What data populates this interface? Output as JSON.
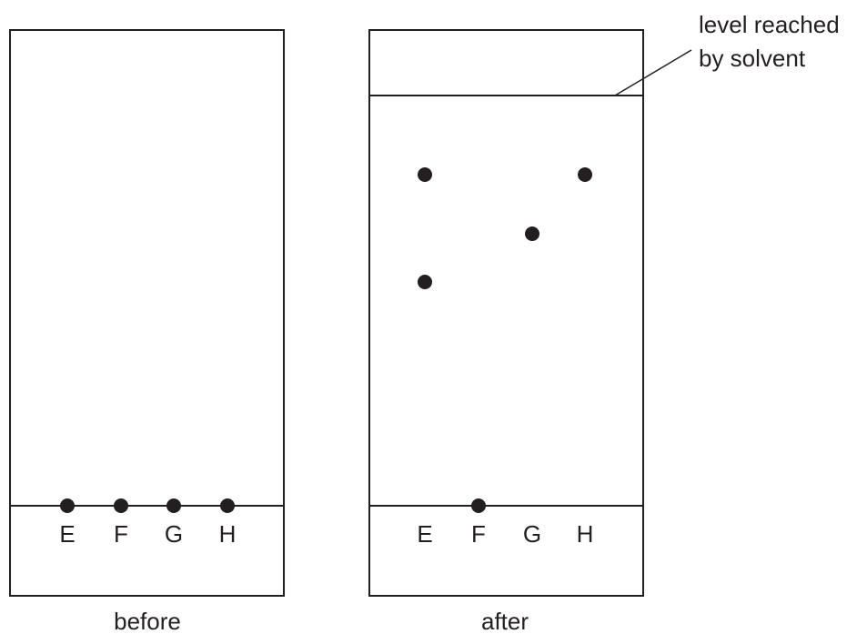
{
  "diagram": {
    "lanes": [
      "E",
      "F",
      "G",
      "H"
    ],
    "before": {
      "caption": "before",
      "spots": [
        "E",
        "F",
        "G",
        "H"
      ]
    },
    "after": {
      "caption": "after",
      "solvent_label_line1": "level reached",
      "solvent_label_line2": "by solvent",
      "spots": [
        {
          "lane": "E",
          "count": 2
        },
        {
          "lane": "F",
          "count": 1,
          "stayed_on_baseline": true
        },
        {
          "lane": "G",
          "count": 1
        },
        {
          "lane": "H",
          "count": 1
        }
      ]
    },
    "ink_color": "#231f20"
  }
}
